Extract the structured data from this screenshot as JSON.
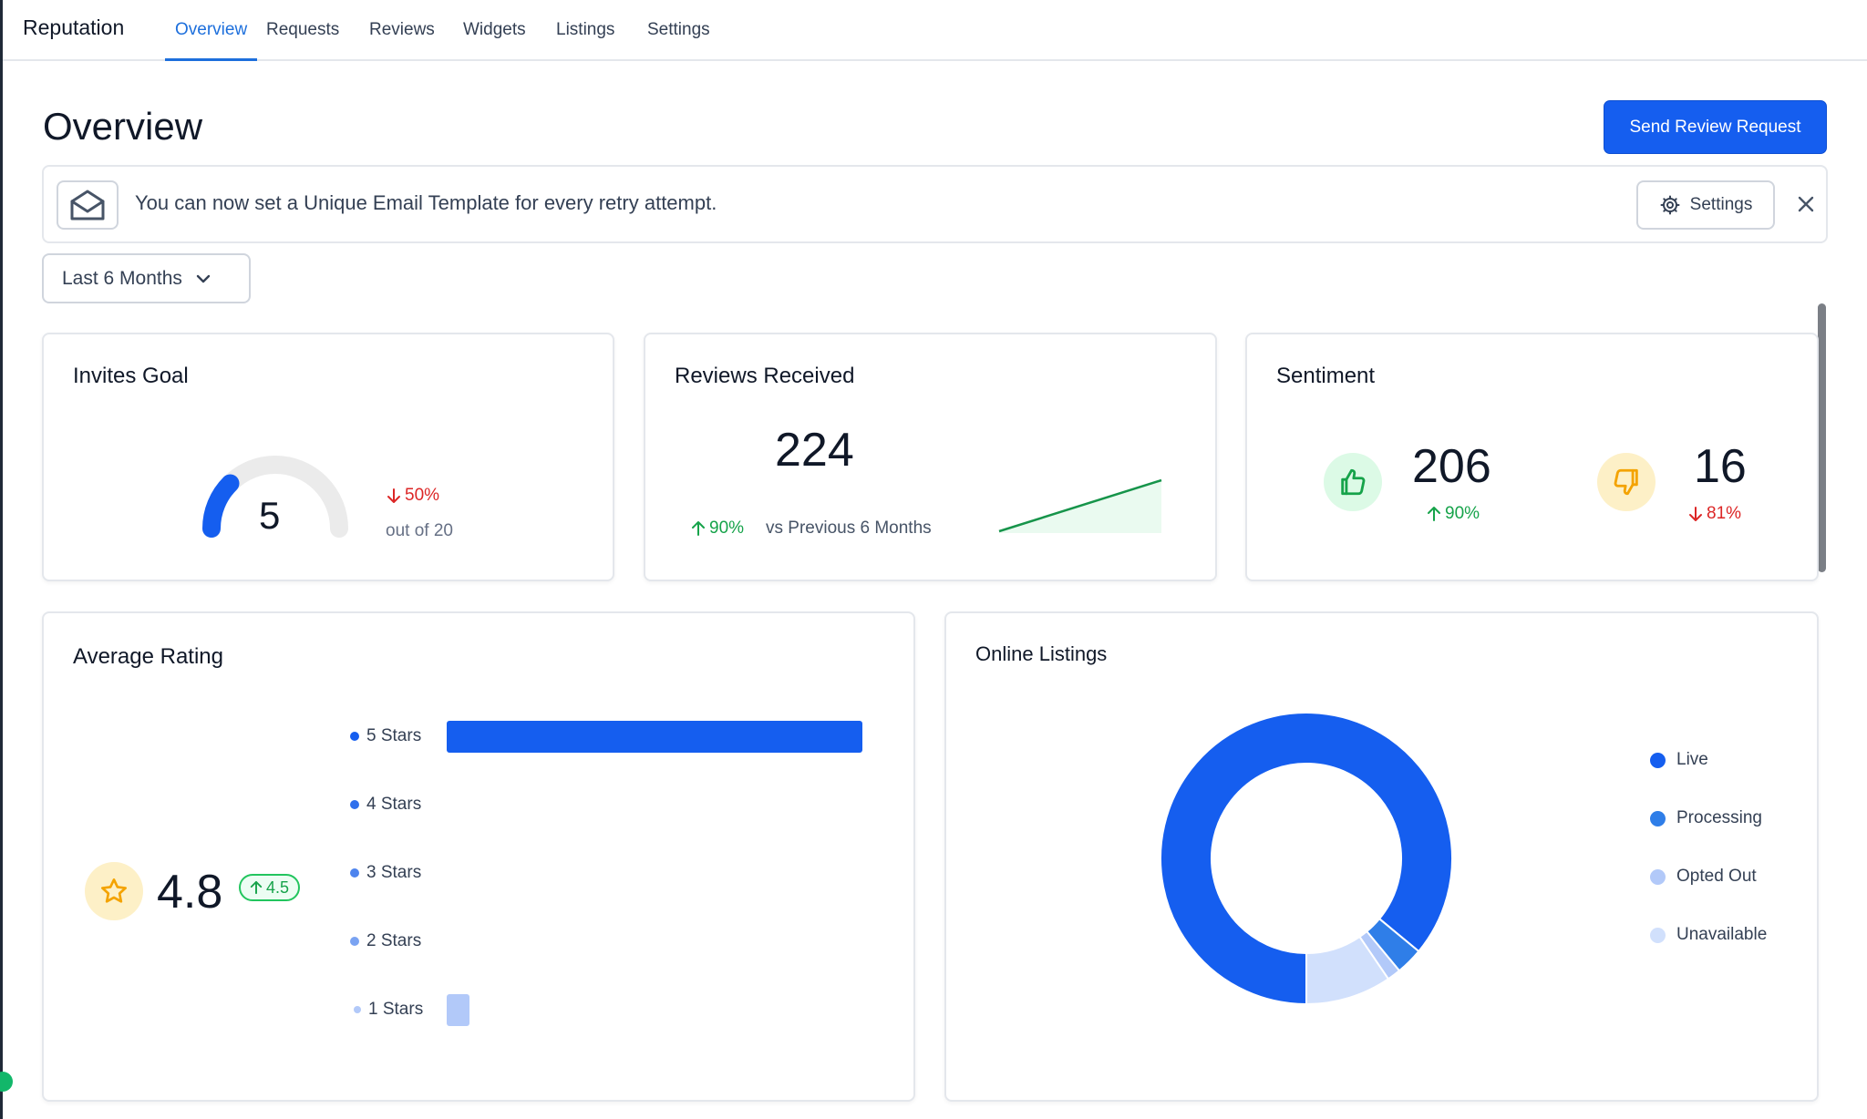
{
  "nav": {
    "brand": "Reputation",
    "tabs": [
      "Overview",
      "Requests",
      "Reviews",
      "Widgets",
      "Listings",
      "Settings"
    ],
    "active_tab": "Overview"
  },
  "page": {
    "title": "Overview",
    "send_button": "Send Review Request"
  },
  "banner": {
    "icon": "envelope-open-icon",
    "text": "You can now set a Unique Email Template for every retry attempt.",
    "settings_label": "Settings"
  },
  "range": {
    "selected": "Last 6 Months"
  },
  "invites_goal": {
    "title": "Invites Goal",
    "value": "5",
    "goal": 20,
    "delta": "50%",
    "delta_direction": "down",
    "goal_text": "out of 20"
  },
  "reviews_received": {
    "title": "Reviews Received",
    "value": "224",
    "delta": "90%",
    "delta_direction": "up",
    "compare_text": "vs Previous 6 Months"
  },
  "sentiment": {
    "title": "Sentiment",
    "positive": {
      "value": "206",
      "delta": "90%",
      "direction": "up",
      "icon": "thumbs-up-icon"
    },
    "negative": {
      "value": "16",
      "delta": "81%",
      "direction": "down",
      "icon": "thumbs-down-icon"
    }
  },
  "average_rating": {
    "title": "Average Rating",
    "value": "4.8",
    "delta": "4.5",
    "icon": "star-icon",
    "rows": [
      {
        "label": "5 Stars",
        "fraction": 1.0,
        "color": "#155eef"
      },
      {
        "label": "4 Stars",
        "fraction": 0,
        "color": "#2f6fec"
      },
      {
        "label": "3 Stars",
        "fraction": 0,
        "color": "#4d84ee"
      },
      {
        "label": "2 Stars",
        "fraction": 0,
        "color": "#7aa3f2"
      },
      {
        "label": "1 Stars",
        "fraction": 0.055,
        "color": "#b2c9f9"
      }
    ]
  },
  "online_listings": {
    "title": "Online Listings",
    "legend": [
      {
        "label": "Live",
        "color": "#155eef",
        "share": 0.86
      },
      {
        "label": "Processing",
        "color": "#2f7ee8",
        "share": 0.03
      },
      {
        "label": "Opted Out",
        "color": "#b2c9f9",
        "share": 0.015
      },
      {
        "label": "Unavailable",
        "color": "#d1e0fc",
        "share": 0.095
      }
    ]
  },
  "colors": {
    "primary": "#155eef",
    "positive": "#16a34a",
    "negative": "#dc2626",
    "warning": "#f4a300"
  }
}
